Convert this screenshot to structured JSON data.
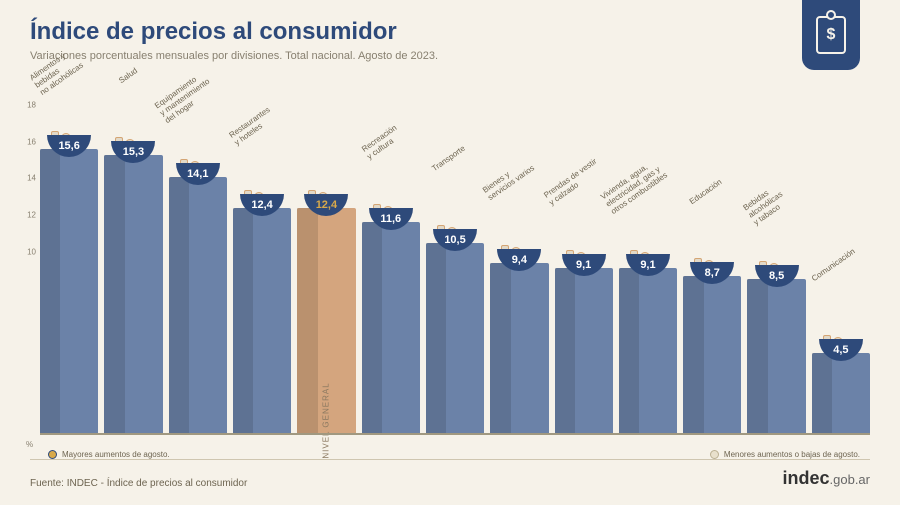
{
  "title": "Índice de precios al consumidor",
  "subtitle": "Variaciones porcentuales mensuales por divisiones. Total nacional. Agosto de 2023.",
  "badge_symbol": "$",
  "chart": {
    "type": "bar",
    "ylim": [
      0,
      18
    ],
    "yticks": [
      10,
      12,
      14,
      16,
      18
    ],
    "y_unit": "%",
    "baseline_color": "#a09880",
    "bar_color_default": "#6b82a8",
    "bar_color_highlight": "#d4a57e",
    "marker_color_high": "#d8a94a",
    "marker_color_low": "#e8e0cc",
    "bowl_color": "#2e4a7a",
    "value_color_default": "#ffffff",
    "value_color_highlight": "#d8a94a",
    "nivel_general_label": "NIVEL GENERAL",
    "bars": [
      {
        "label": "Alimentos y\nbebidas\nno alcohólicas",
        "value": 15.6,
        "display": "15,6",
        "marker": "high"
      },
      {
        "label": "Salud",
        "value": 15.3,
        "display": "15,3",
        "marker": "high"
      },
      {
        "label": "Equipamiento\ny mantenimiento\ndel hogar",
        "value": 14.1,
        "display": "14,1",
        "marker": "high"
      },
      {
        "label": "Restaurantes\ny hoteles",
        "value": 12.4,
        "display": "12,4"
      },
      {
        "label": "",
        "value": 12.4,
        "display": "12,4",
        "highlight": true
      },
      {
        "label": "Recreación\ny cultura",
        "value": 11.6,
        "display": "11,6"
      },
      {
        "label": "Transporte",
        "value": 10.5,
        "display": "10,5"
      },
      {
        "label": "Bienes y\nservicios varios",
        "value": 9.4,
        "display": "9,4"
      },
      {
        "label": "Prendas de vestir\ny calzado",
        "value": 9.1,
        "display": "9,1"
      },
      {
        "label": "Vivienda, agua,\nelectricidad, gas y\notros combustibles",
        "value": 9.1,
        "display": "9,1"
      },
      {
        "label": "Educación",
        "value": 8.7,
        "display": "8,7"
      },
      {
        "label": "Bebidas\nalcohólicas\ny tabaco",
        "value": 8.5,
        "display": "8,5"
      },
      {
        "label": "Comunicación",
        "value": 4.5,
        "display": "4,5",
        "marker": "low"
      }
    ]
  },
  "legend": {
    "high": "Mayores aumentos de agosto.",
    "low": "Menores aumentos o bajas de agosto."
  },
  "footer_source": "Fuente: INDEC - Índice de precios al consumidor",
  "logo_bold": "indec",
  "logo_light": ".gob.ar"
}
